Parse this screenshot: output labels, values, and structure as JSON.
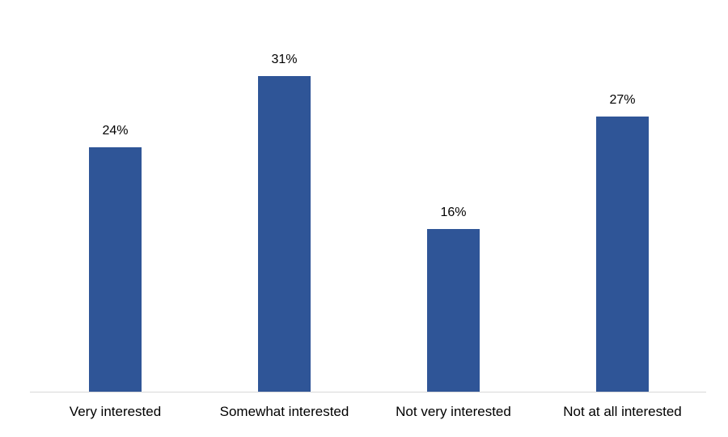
{
  "chart_data": {
    "type": "bar",
    "title": "",
    "xlabel": "",
    "ylabel": "",
    "categories": [
      "Very interested",
      "Somewhat interested",
      "Not very interested",
      "Not at all interested"
    ],
    "values": [
      24,
      31,
      16,
      27
    ],
    "labels": [
      "24%",
      "31%",
      "16%",
      "27%"
    ],
    "ylim": [
      0,
      40
    ],
    "grid": false,
    "legend": null,
    "bar_color": "#2F5597"
  }
}
